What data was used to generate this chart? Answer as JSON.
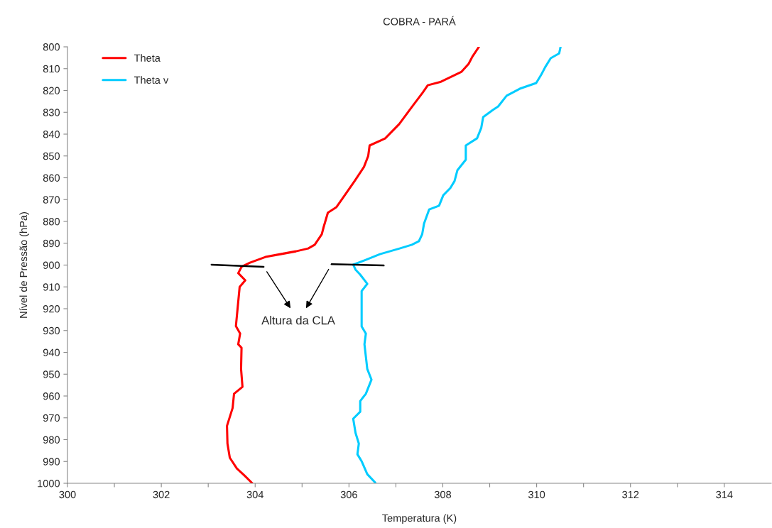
{
  "chart_data": {
    "type": "line",
    "title": "COBRA - PARÁ",
    "xlabel": "Temperatura (K)",
    "ylabel": "Nível de Pressão (hPa)",
    "xlim": [
      300,
      315
    ],
    "ylim": [
      1000,
      800
    ],
    "xticks": [
      300,
      {
        "value": 301,
        "label": null
      },
      302,
      {
        "value": 303,
        "label": null
      },
      304,
      {
        "value": 305,
        "label": null
      },
      306,
      {
        "value": 307,
        "label": null
      },
      308,
      {
        "value": 309,
        "label": null
      },
      310,
      {
        "value": 311,
        "label": null
      },
      312,
      {
        "value": 313,
        "label": null
      },
      314
    ],
    "yticks": [
      800,
      810,
      820,
      830,
      840,
      850,
      860,
      870,
      880,
      890,
      900,
      910,
      920,
      930,
      940,
      950,
      960,
      970,
      980,
      990,
      1000
    ],
    "grid": false,
    "legend": "top left",
    "marker": "none",
    "line_style": "solid",
    "series": [
      {
        "name": "Theta",
        "color": "#ff0000",
        "x": [
          308.77,
          308.63,
          308.55,
          308.4,
          307.96,
          307.68,
          307.57,
          307.35,
          307.07,
          306.77,
          306.44,
          306.41,
          306.32,
          306.12,
          305.91,
          305.73,
          305.55,
          305.46,
          305.42,
          305.27,
          305.13,
          304.87,
          304.54,
          304.22,
          303.89,
          303.71,
          303.64,
          303.79,
          303.67,
          303.59,
          303.68,
          303.64,
          303.71,
          303.7,
          303.73,
          303.55,
          303.52,
          303.4,
          303.41,
          303.46,
          303.61,
          303.77,
          303.94
        ],
        "values": [
          800,
          804.5,
          807.8,
          811.4,
          816,
          817.6,
          821,
          827.3,
          835.4,
          842,
          845.2,
          850,
          855,
          861.5,
          868,
          873.5,
          876,
          882.6,
          885.9,
          890.7,
          892.4,
          893.7,
          895,
          896.3,
          898.9,
          900.8,
          903.7,
          907,
          910,
          928,
          931.4,
          936.3,
          937.9,
          947.6,
          955.8,
          959,
          965.5,
          973.7,
          981.8,
          988.3,
          993.2,
          996.4,
          1000
        ]
      },
      {
        "name": "Theta v",
        "color": "#00ccff",
        "x": [
          310.51,
          310.48,
          310.3,
          310.18,
          310.1,
          309.99,
          309.64,
          309.36,
          309.18,
          309.06,
          308.86,
          308.82,
          308.73,
          308.49,
          308.49,
          308.31,
          308.25,
          308.16,
          308.01,
          307.92,
          307.71,
          307.6,
          307.56,
          307.49,
          307.34,
          307.08,
          306.66,
          306.36,
          306.09,
          306.14,
          306.24,
          306.39,
          306.27,
          306.27,
          306.36,
          306.33,
          306.39,
          306.48,
          306.36,
          306.24,
          306.24,
          306.09,
          306.14,
          306.21,
          306.18,
          306.27,
          306.39,
          306.56
        ],
        "values": [
          800,
          803,
          805.2,
          809.4,
          812.7,
          816.6,
          819.2,
          822.4,
          827.3,
          829,
          832.2,
          837.1,
          841.9,
          845.2,
          851.7,
          856.6,
          861.5,
          864.7,
          868,
          872.8,
          874.5,
          881,
          885.9,
          889.1,
          890.7,
          892.4,
          895,
          897.6,
          899.8,
          902.1,
          904.4,
          908.6,
          911.9,
          928.1,
          931.4,
          936.3,
          947.6,
          952.5,
          959,
          962.3,
          967.2,
          970.4,
          976.9,
          981.8,
          986.7,
          989.9,
          995.8,
          999.7
        ]
      },
      {
        "color": "#000000",
        "x": [
          303.07,
          304.18
        ],
        "values": [
          899.8,
          900.8
        ]
      },
      {
        "color": "#000000",
        "x": [
          305.63,
          306.74
        ],
        "values": [
          899.6,
          900.2
        ]
      }
    ],
    "annotations": [
      "Altura da CLA"
    ]
  }
}
